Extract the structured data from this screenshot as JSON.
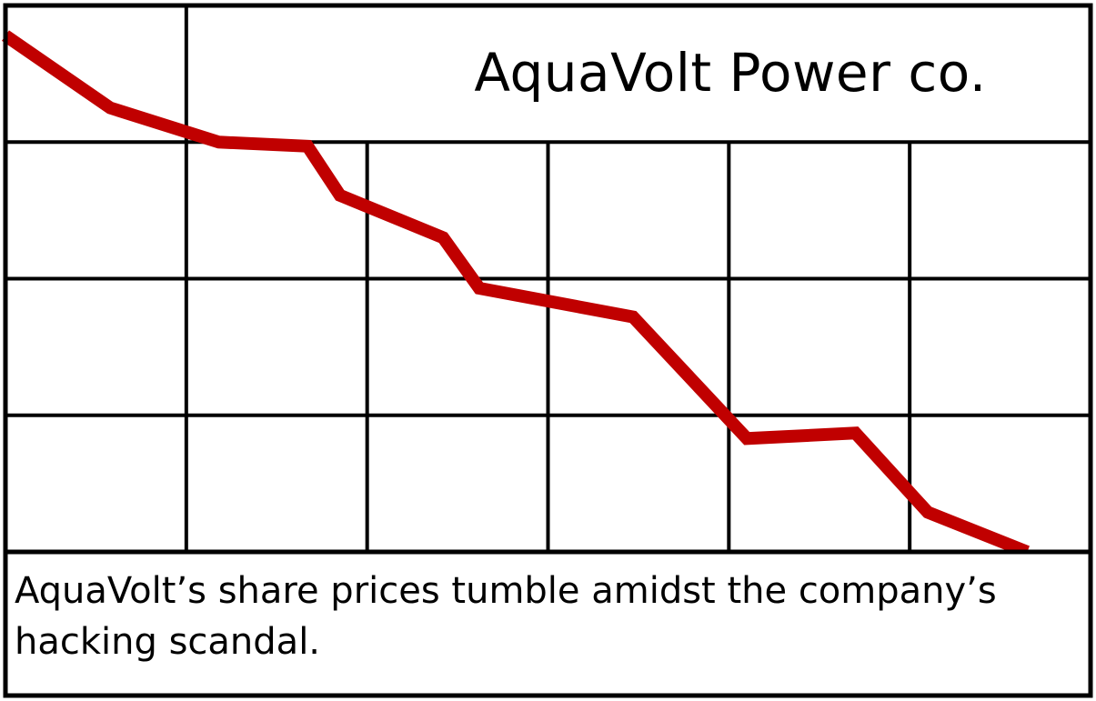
{
  "chart_data": {
    "type": "line",
    "title": "AquaVolt Power co.",
    "caption": "AquaVolt’s share prices tumble amidst the company’s hacking scandal.",
    "xlim": [
      0,
      6
    ],
    "ylim": [
      0,
      4
    ],
    "grid": true,
    "line_color": "#c00000",
    "series": [
      {
        "values_x": [
          0,
          0.58,
          1.18,
          1.67,
          1.85,
          2.42,
          2.62,
          3.47,
          4.1,
          4.7,
          5.1,
          5.65
        ],
        "values_y": [
          3.78,
          3.25,
          3.0,
          2.97,
          2.61,
          2.3,
          1.93,
          1.72,
          0.83,
          0.87,
          0.29,
          0.0
        ]
      }
    ]
  },
  "colors": {
    "grid": "#000000",
    "line": "#c00000",
    "background": "#ffffff"
  }
}
